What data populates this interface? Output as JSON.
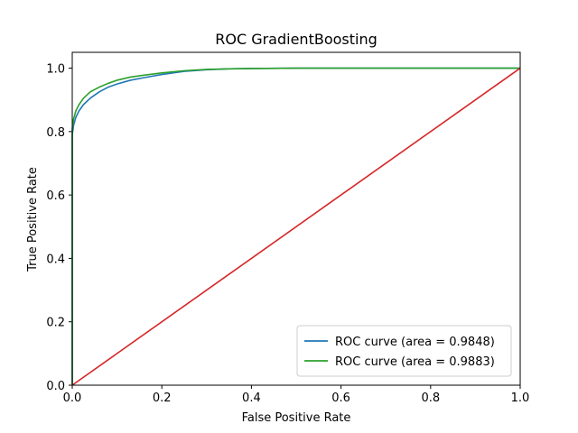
{
  "chart_data": {
    "type": "line",
    "title": "ROC GradientBoosting",
    "xlabel": "False Positive Rate",
    "ylabel": "True Positive Rate",
    "xlim": [
      0,
      1
    ],
    "ylim": [
      0,
      1.05
    ],
    "xticks": [
      "0.0",
      "0.2",
      "0.4",
      "0.6",
      "0.8",
      "1.0"
    ],
    "yticks": [
      "0.0",
      "0.2",
      "0.4",
      "0.6",
      "0.8",
      "1.0"
    ],
    "grid": false,
    "legend_position": "lower-right",
    "series": [
      {
        "name": "ROC curve (area = 0.9848)",
        "color": "#1f77b4",
        "x": [
          0.0,
          0.0,
          0.003,
          0.008,
          0.015,
          0.025,
          0.04,
          0.06,
          0.08,
          0.1,
          0.13,
          0.16,
          0.2,
          0.25,
          0.3,
          0.35,
          0.4,
          0.5,
          0.6,
          0.7,
          0.8,
          0.9,
          1.0
        ],
        "y": [
          0.0,
          0.79,
          0.82,
          0.845,
          0.865,
          0.885,
          0.905,
          0.925,
          0.94,
          0.95,
          0.962,
          0.97,
          0.98,
          0.99,
          0.995,
          0.998,
          0.999,
          1.0,
          1.0,
          1.0,
          1.0,
          1.0,
          1.0
        ]
      },
      {
        "name": "ROC curve (area = 0.9883)",
        "color": "#2ca02c",
        "x": [
          0.0,
          0.0,
          0.003,
          0.008,
          0.015,
          0.025,
          0.04,
          0.06,
          0.08,
          0.1,
          0.13,
          0.16,
          0.2,
          0.25,
          0.3,
          0.35,
          0.4,
          0.5,
          0.6,
          0.7,
          0.8,
          0.9,
          1.0
        ],
        "y": [
          0.0,
          0.81,
          0.84,
          0.865,
          0.885,
          0.905,
          0.925,
          0.94,
          0.952,
          0.962,
          0.972,
          0.978,
          0.985,
          0.992,
          0.996,
          0.998,
          0.999,
          1.0,
          1.0,
          1.0,
          1.0,
          1.0,
          1.0
        ]
      },
      {
        "name": "",
        "color": "#d62728",
        "x": [
          0,
          1
        ],
        "y": [
          0,
          1
        ]
      }
    ]
  }
}
